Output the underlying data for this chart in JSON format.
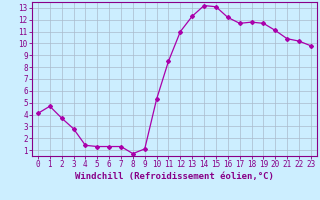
{
  "x": [
    0,
    1,
    2,
    3,
    4,
    5,
    6,
    7,
    8,
    9,
    10,
    11,
    12,
    13,
    14,
    15,
    16,
    17,
    18,
    19,
    20,
    21,
    22,
    23
  ],
  "y": [
    4.1,
    4.7,
    3.7,
    2.8,
    1.4,
    1.3,
    1.3,
    1.3,
    0.7,
    1.1,
    5.3,
    8.5,
    11.0,
    12.3,
    13.2,
    13.1,
    12.2,
    11.7,
    11.8,
    11.7,
    11.1,
    10.4,
    10.2,
    9.8
  ],
  "line_color": "#aa00aa",
  "marker": "D",
  "marker_size": 2.0,
  "bg_color": "#cceeff",
  "grid_color": "#aabbcc",
  "xlabel": "Windchill (Refroidissement éolien,°C)",
  "xlim": [
    -0.5,
    23.5
  ],
  "ylim": [
    0.5,
    13.5
  ],
  "yticks": [
    1,
    2,
    3,
    4,
    5,
    6,
    7,
    8,
    9,
    10,
    11,
    12,
    13
  ],
  "xticks": [
    0,
    1,
    2,
    3,
    4,
    5,
    6,
    7,
    8,
    9,
    10,
    11,
    12,
    13,
    14,
    15,
    16,
    17,
    18,
    19,
    20,
    21,
    22,
    23
  ],
  "tick_color": "#880088",
  "label_color": "#880088",
  "spine_color": "#880088",
  "tick_fontsize": 5.5,
  "xlabel_fontsize": 6.5
}
